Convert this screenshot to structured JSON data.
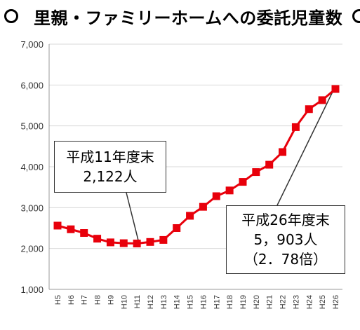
{
  "header": {
    "title": "里親・ファミリーホームへの委託児童数"
  },
  "chart_data": {
    "type": "line",
    "categories": [
      "H5",
      "H6",
      "H7",
      "H8",
      "H9",
      "H10",
      "H11",
      "H12",
      "H13",
      "H14",
      "H15",
      "H16",
      "H17",
      "H18",
      "H19",
      "H20",
      "H21",
      "H22",
      "H23",
      "H24",
      "H25",
      "H26"
    ],
    "series": [
      {
        "values": [
          2560,
          2470,
          2380,
          2240,
          2150,
          2130,
          2122,
          2160,
          2210,
          2500,
          2800,
          3020,
          3280,
          3420,
          3630,
          3870,
          4050,
          4360,
          4970,
          5410,
          5630,
          5903
        ]
      }
    ],
    "yticks": [
      "1,000",
      "2,000",
      "3,000",
      "4,000",
      "5,000",
      "6,000",
      "7,000"
    ],
    "ylim": [
      1000,
      7000
    ],
    "grid": true,
    "colors": {
      "line": "#e8000b",
      "marker": "#e8000b",
      "grid": "#d9d9d9"
    },
    "annotations": [
      {
        "lines": [
          "平成11年度末",
          "2,122人"
        ],
        "category": "H11"
      },
      {
        "lines": [
          "平成26年度末",
          "5，903人",
          "（2．78倍）"
        ],
        "category": "H26"
      }
    ]
  }
}
